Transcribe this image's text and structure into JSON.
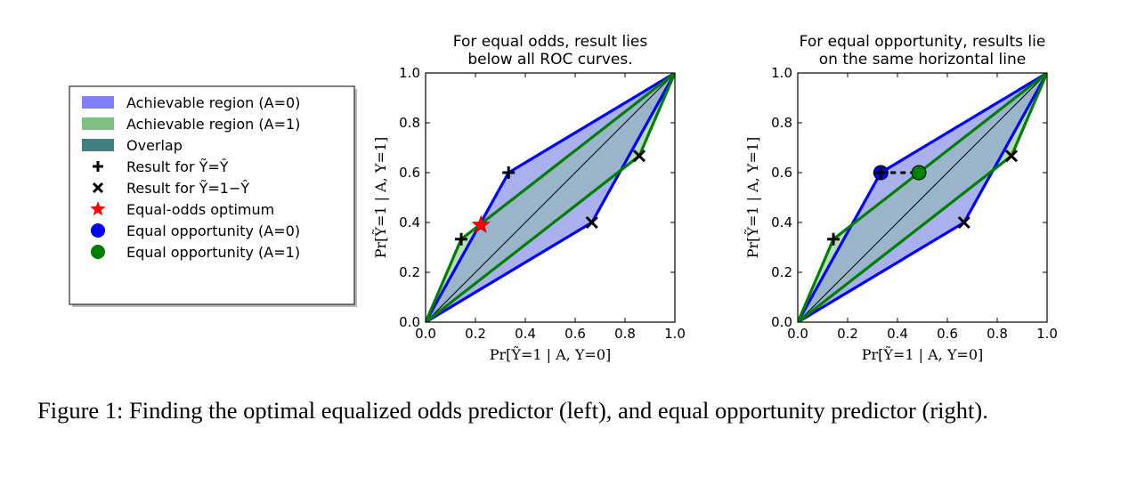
{
  "legend": {
    "entries": [
      {
        "label": "Achievable region (A=0)",
        "kind": "patch",
        "color": "#8080ff"
      },
      {
        "label": "Achievable region (A=1)",
        "kind": "patch",
        "color": "#80c080"
      },
      {
        "label": "Overlap",
        "kind": "patch",
        "color": "#408080"
      },
      {
        "label": "Result for Ỹ=Ŷ",
        "kind": "plus",
        "color": "#000000"
      },
      {
        "label": "Result for Ỹ=1−Ŷ",
        "kind": "x",
        "color": "#000000"
      },
      {
        "label": "Equal-odds optimum",
        "kind": "star",
        "color": "#ff0000"
      },
      {
        "label": "Equal opportunity (A=0)",
        "kind": "circle",
        "color": "#0000ff"
      },
      {
        "label": "Equal opportunity (A=1)",
        "kind": "circle",
        "color": "#008000"
      }
    ]
  },
  "colors": {
    "region_a0_fill": "#aab0ee",
    "region_a1_fill": "#b8dcb8",
    "overlap_fill": "#9ab4c9",
    "roc_a0_line": "#0000ff",
    "roc_a1_line": "#008000"
  },
  "chart_data": [
    {
      "type": "line",
      "title_lines": [
        "For equal odds, result lies",
        "below all ROC curves."
      ],
      "xlabel": "Pr[Ỹ=1 | A, Y=0]",
      "ylabel": "Pr[Ỹ=1 | A, Y=1]",
      "xlim": [
        0,
        1
      ],
      "ylim": [
        0,
        1
      ],
      "xticks": [
        "0.0",
        "0.2",
        "0.4",
        "0.6",
        "0.8",
        "1.0"
      ],
      "yticks": [
        "0.0",
        "0.2",
        "0.4",
        "0.6",
        "0.8",
        "1.0"
      ],
      "region_a0": [
        [
          0,
          0
        ],
        [
          0.333,
          0.6
        ],
        [
          1,
          1
        ],
        [
          0.667,
          0.4
        ]
      ],
      "region_a1": [
        [
          0,
          0
        ],
        [
          0.143,
          0.333
        ],
        [
          1,
          1
        ],
        [
          0.857,
          0.667
        ]
      ],
      "diagonal": [
        [
          0,
          0
        ],
        [
          1,
          1
        ]
      ],
      "plus_markers": [
        [
          0.333,
          0.6
        ],
        [
          0.143,
          0.333
        ]
      ],
      "x_markers": [
        [
          0.667,
          0.4
        ],
        [
          0.857,
          0.667
        ]
      ],
      "star_markers": [
        [
          0.222,
          0.39
        ]
      ],
      "circle_markers": [],
      "dashed_segment": []
    },
    {
      "type": "line",
      "title_lines": [
        "For equal opportunity, results lie",
        "on the same horizontal line"
      ],
      "xlabel": "Pr[Ỹ=1 | A, Y=0]",
      "ylabel": "Pr[Ỹ=1 | A, Y=1]",
      "xlim": [
        0,
        1
      ],
      "ylim": [
        0,
        1
      ],
      "xticks": [
        "0.0",
        "0.2",
        "0.4",
        "0.6",
        "0.8",
        "1.0"
      ],
      "yticks": [
        "0.0",
        "0.2",
        "0.4",
        "0.6",
        "0.8",
        "1.0"
      ],
      "region_a0": [
        [
          0,
          0
        ],
        [
          0.333,
          0.6
        ],
        [
          1,
          1
        ],
        [
          0.667,
          0.4
        ]
      ],
      "region_a1": [
        [
          0,
          0
        ],
        [
          0.143,
          0.333
        ],
        [
          1,
          1
        ],
        [
          0.857,
          0.667
        ]
      ],
      "diagonal": [
        [
          0,
          0
        ],
        [
          1,
          1
        ]
      ],
      "plus_markers": [
        [
          0.333,
          0.6
        ],
        [
          0.143,
          0.333
        ]
      ],
      "x_markers": [
        [
          0.667,
          0.4
        ],
        [
          0.857,
          0.667
        ]
      ],
      "star_markers": [],
      "circle_markers": [
        {
          "x": 0.333,
          "y": 0.6,
          "color": "#0000ff"
        },
        {
          "x": 0.486,
          "y": 0.6,
          "color": "#008000"
        }
      ],
      "dashed_segment": [
        [
          0.333,
          0.6
        ],
        [
          0.486,
          0.6
        ]
      ]
    }
  ],
  "caption": "Figure 1: Finding the optimal equalized odds predictor (left), and equal opportunity predictor (right)."
}
